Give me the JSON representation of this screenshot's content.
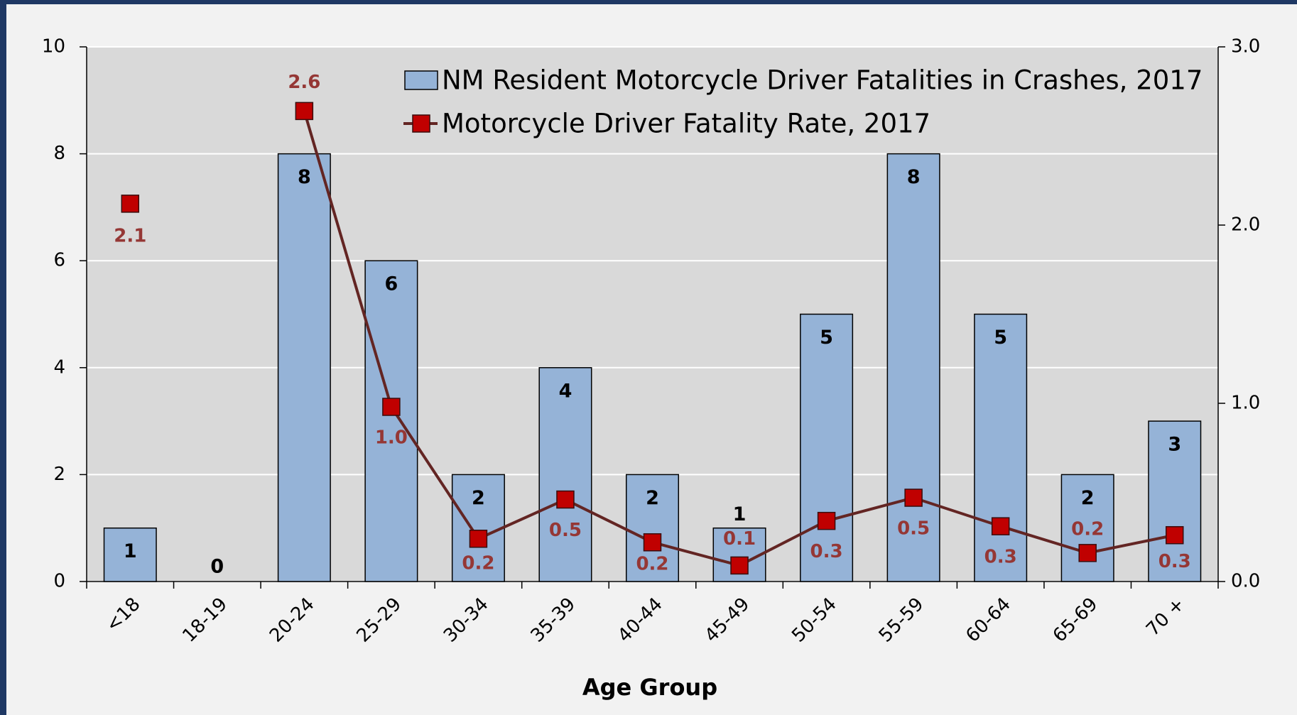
{
  "chart_data": {
    "type": "bar",
    "x_label": "Age Group",
    "categories": [
      "<18",
      "18-19",
      "20-24",
      "25-29",
      "30-34",
      "35-39",
      "40-44",
      "45-49",
      "50-54",
      "55-59",
      "60-64",
      "65-69",
      "70 +"
    ],
    "series": [
      {
        "name": "NM Resident Motorcycle Driver Fatalities in Crashes, 2017",
        "type": "bar",
        "color": "#95b3d7",
        "values": [
          1,
          0,
          8,
          6,
          2,
          4,
          2,
          1,
          5,
          8,
          5,
          2,
          3
        ]
      },
      {
        "name": "Motorcycle Driver Fatality Rate, 2017",
        "type": "line",
        "axis": "y2",
        "color": "#632523",
        "marker_color": "#c00000",
        "values": [
          2.12,
          null,
          2.64,
          0.98,
          0.24,
          0.46,
          0.22,
          0.09,
          0.34,
          0.47,
          0.31,
          0.16,
          0.26
        ],
        "value_labels": [
          "2.1",
          null,
          "2.6",
          "1.0",
          "0.2",
          "0.5",
          "0.2",
          "0.1",
          "0.3",
          "0.5",
          "0.3",
          "0.2",
          "0.3"
        ]
      }
    ],
    "ylim": [
      0,
      10
    ],
    "yticks": [
      0,
      2,
      4,
      6,
      8,
      10
    ],
    "y2lim": [
      0,
      3
    ],
    "y2ticks": [
      {
        "value": 0,
        "label": "0.0"
      },
      {
        "value": 1,
        "label": "1.0"
      },
      {
        "value": 2,
        "label": "2.0"
      },
      {
        "value": 3,
        "label": "3.0"
      }
    ],
    "grid": true,
    "legend": "top-right"
  }
}
